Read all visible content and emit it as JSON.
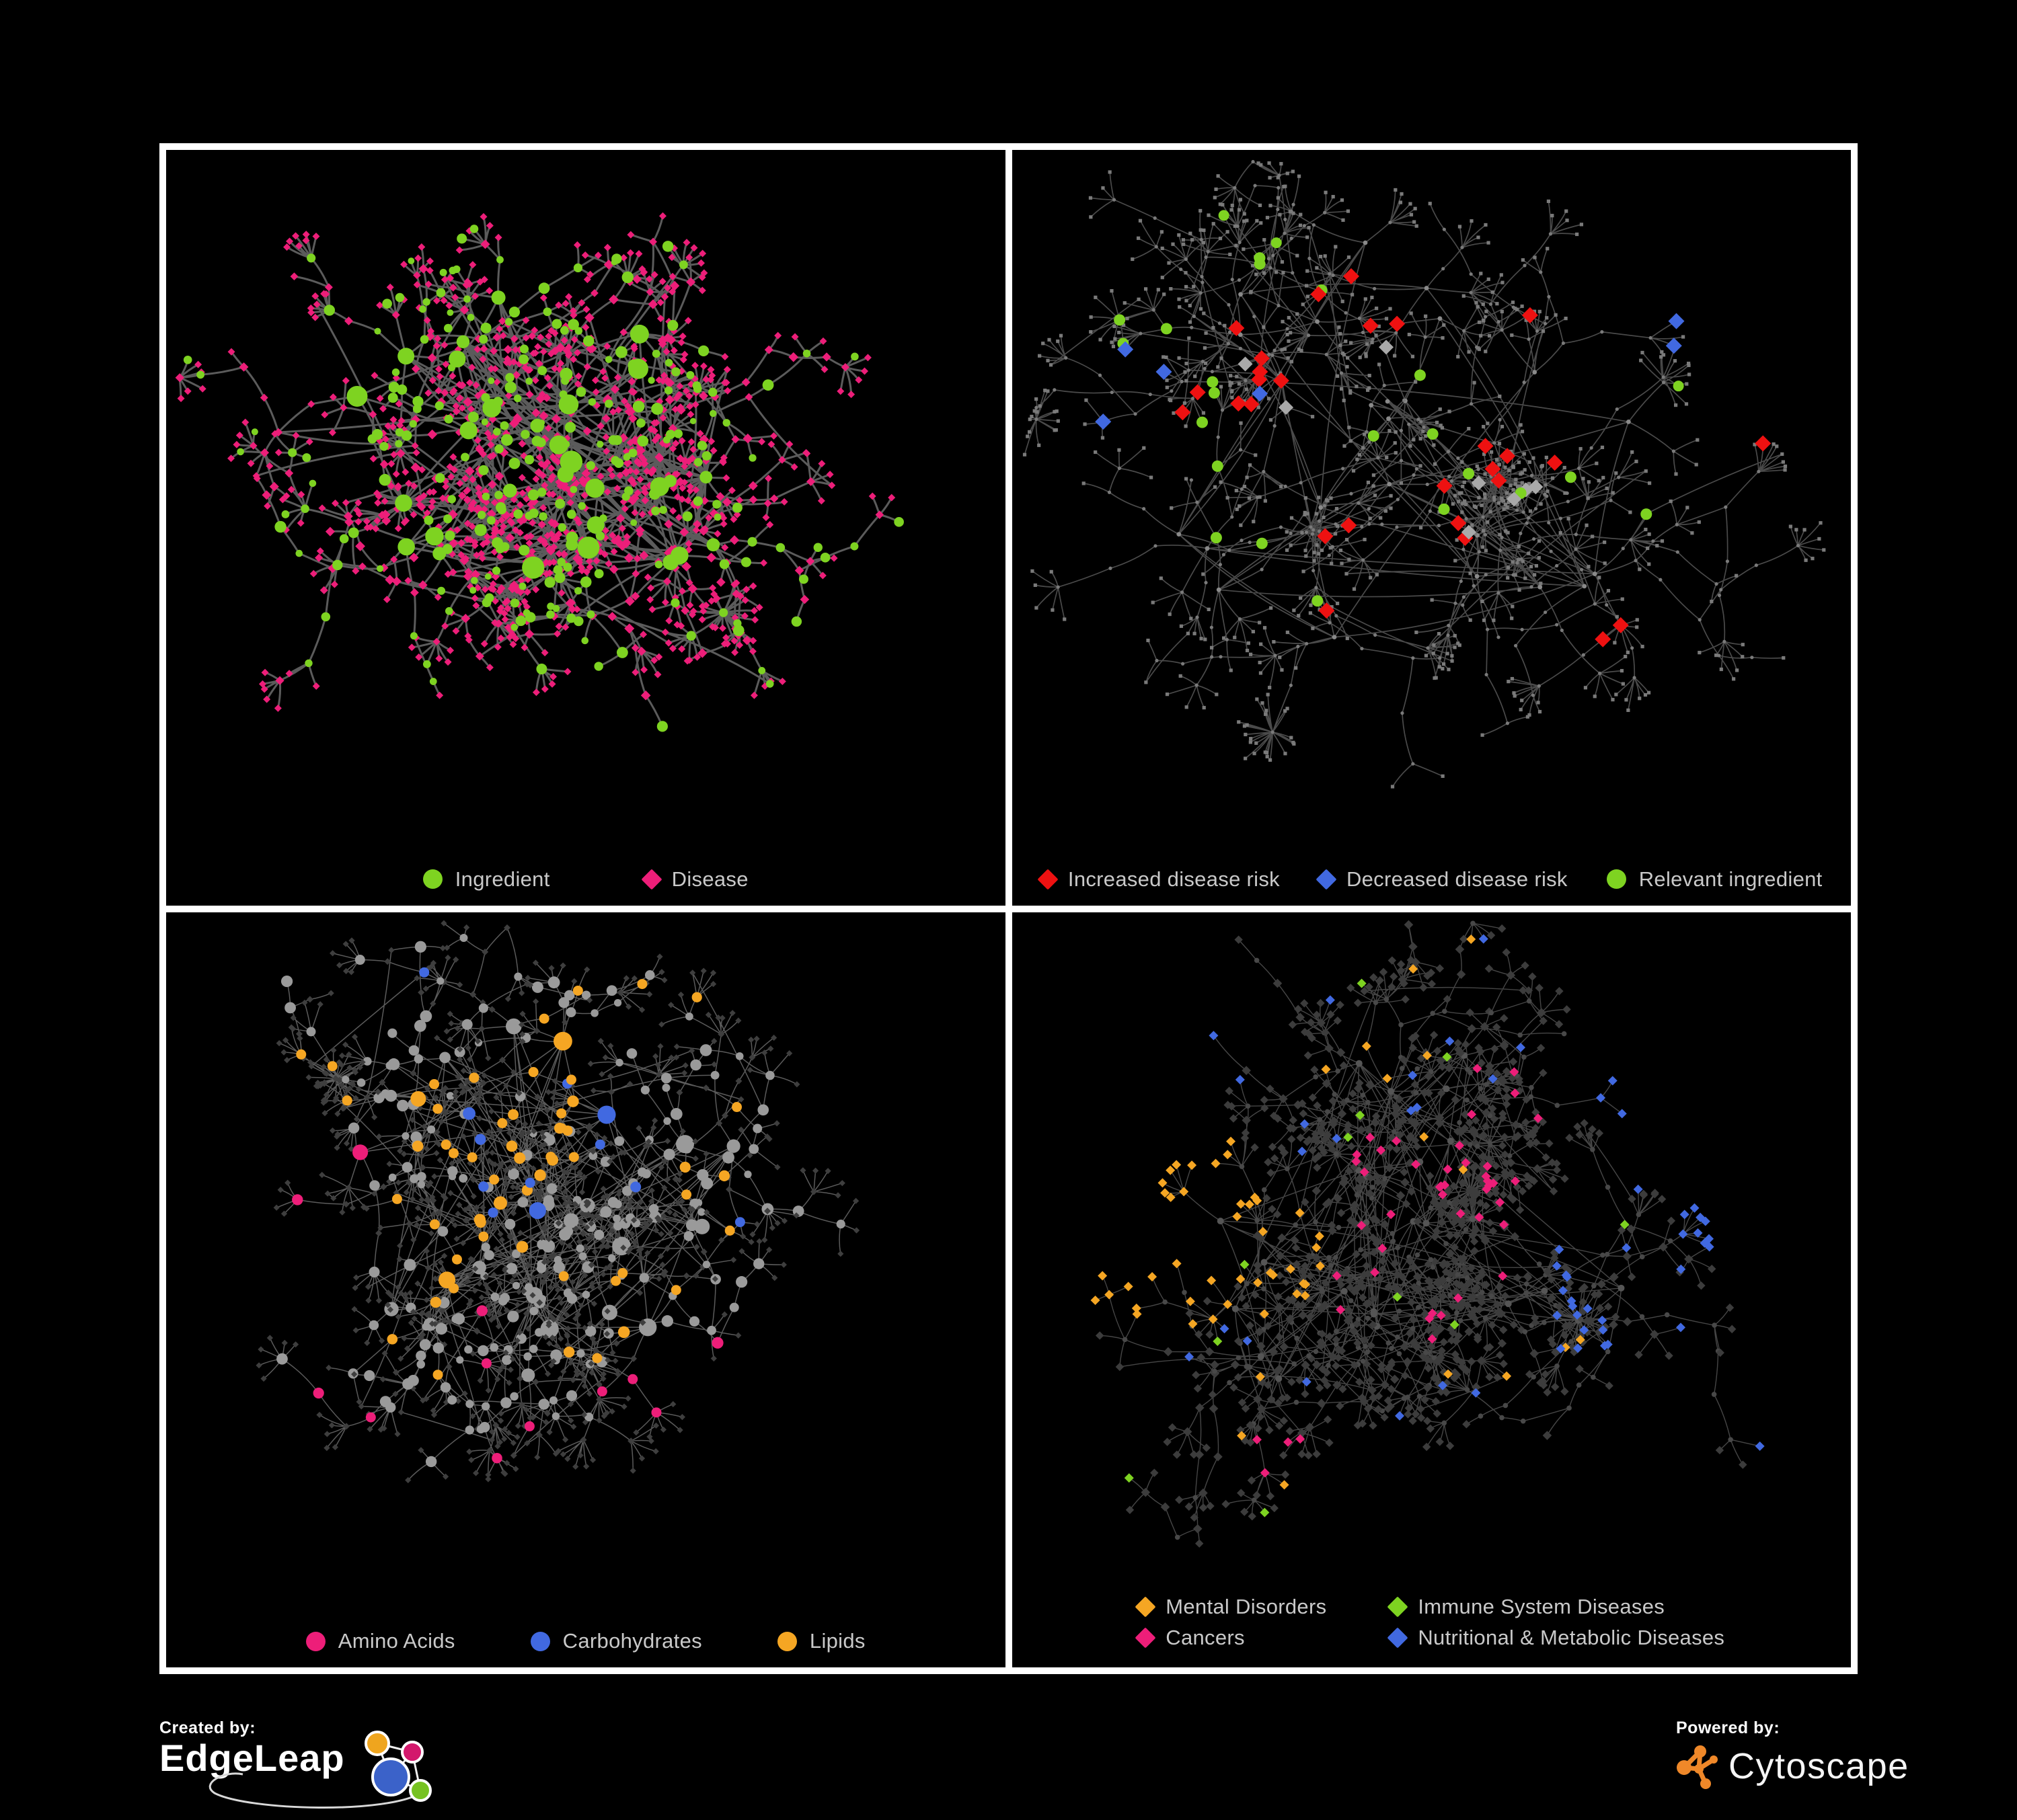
{
  "colors": {
    "background": "#000000",
    "frame": "#ffffff",
    "legend_text": "#c9c9c9",
    "cytoscape_orange": "#ef8829",
    "edgeleap_orange": "#efa51e",
    "edgeleap_pink": "#d3186c",
    "edgeleap_blue": "#3b62c9",
    "edgeleap_green": "#76c221"
  },
  "panels": [
    {
      "name": "ingredient-disease-network",
      "legend": [
        {
          "label": "Ingredient",
          "shape": "circle",
          "color": "#7ed321"
        },
        {
          "label": "Disease",
          "shape": "diamond",
          "color": "#ed1e79"
        }
      ]
    },
    {
      "name": "disease-risk-network",
      "legend": [
        {
          "label": "Increased disease risk",
          "shape": "diamond",
          "color": "#ee1111"
        },
        {
          "label": "Decreased disease risk",
          "shape": "diamond",
          "color": "#4169e1"
        },
        {
          "label": "Relevant ingredient",
          "shape": "circle",
          "color": "#7ed321"
        }
      ]
    },
    {
      "name": "nutrient-class-network",
      "legend": [
        {
          "label": "Amino Acids",
          "shape": "circle",
          "color": "#ed1e79"
        },
        {
          "label": "Carbohydrates",
          "shape": "circle",
          "color": "#4169e1"
        },
        {
          "label": "Lipids",
          "shape": "circle",
          "color": "#f5a623"
        }
      ]
    },
    {
      "name": "disease-class-network",
      "legend": [
        {
          "label": "Mental Disorders",
          "shape": "diamond",
          "color": "#f5a623"
        },
        {
          "label": "Immune System Diseases",
          "shape": "diamond",
          "color": "#7ed321"
        },
        {
          "label": "Cancers",
          "shape": "diamond",
          "color": "#ed1e79"
        },
        {
          "label": "Nutritional & Metabolic Diseases",
          "shape": "diamond",
          "color": "#4169e1"
        }
      ]
    }
  ],
  "footer": {
    "created_by": "Created by:",
    "edgeleap": "EdgeLeap",
    "powered_by": "Powered by:",
    "cytoscape": "Cytoscape"
  }
}
